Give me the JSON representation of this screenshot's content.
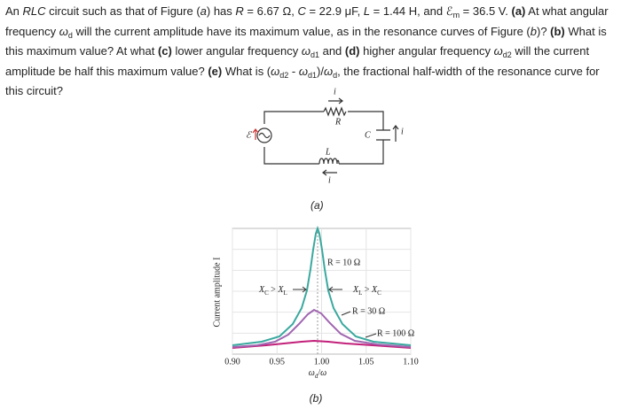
{
  "problem": {
    "runs": [
      {
        "text": "An "
      },
      {
        "text": "RLC",
        "style": "i"
      },
      {
        "text": " circuit such as that of Figure ("
      },
      {
        "text": "a",
        "style": "i"
      },
      {
        "text": ") has "
      },
      {
        "text": "R",
        "style": "i"
      },
      {
        "text": " = 6.67 Ω, "
      },
      {
        "text": "C",
        "style": "i"
      },
      {
        "text": " = 22.9 μF, "
      },
      {
        "text": "L",
        "style": "i"
      },
      {
        "text": " = 1.44 H, and ℰ"
      },
      {
        "text": "m",
        "style": "sub"
      },
      {
        "text": " = 36.5 V. "
      },
      {
        "text": "(a)",
        "style": "b"
      },
      {
        "text": " At what angular frequency "
      },
      {
        "text": "ω",
        "style": "i"
      },
      {
        "text": "d",
        "style": "sub"
      },
      {
        "text": " will the current amplitude have its maximum value, as in the resonance curves of Figure ("
      },
      {
        "text": "b",
        "style": "i"
      },
      {
        "text": ")? "
      },
      {
        "text": "(b)",
        "style": "b"
      },
      {
        "text": " What is this maximum value? At what "
      },
      {
        "text": "(c)",
        "style": "b"
      },
      {
        "text": " lower angular frequency "
      },
      {
        "text": "ω",
        "style": "i"
      },
      {
        "text": "d1",
        "style": "sub"
      },
      {
        "text": " and "
      },
      {
        "text": "(d)",
        "style": "b"
      },
      {
        "text": " higher angular frequency "
      },
      {
        "text": "ω",
        "style": "i"
      },
      {
        "text": "d2",
        "style": "sub"
      },
      {
        "text": " will the current amplitude be half this maximum value? "
      },
      {
        "text": "(e)",
        "style": "b"
      },
      {
        "text": " What is ("
      },
      {
        "text": "ω",
        "style": "i"
      },
      {
        "text": "d2",
        "style": "sub"
      },
      {
        "text": " - "
      },
      {
        "text": "ω",
        "style": "i"
      },
      {
        "text": "d1",
        "style": "sub"
      },
      {
        "text": ")/"
      },
      {
        "text": "ω",
        "style": "i"
      },
      {
        "text": "d",
        "style": "sub"
      },
      {
        "text": ", the fractional half-width of the resonance curve for this circuit?"
      }
    ]
  },
  "figure_a": {
    "labels": {
      "current_top": "i",
      "resistor": "R",
      "source": "ℰ",
      "capacitor": "C",
      "current_right": "i",
      "inductor": "L",
      "current_bottom": "i"
    },
    "caption": "(a)"
  },
  "figure_b": {
    "y_label": "Current amplitude I",
    "x_label": [
      {
        "text": "ω",
        "style": "i"
      },
      {
        "text": "d",
        "style": "sub"
      },
      {
        "text": "/"
      },
      {
        "text": "ω",
        "style": "i"
      }
    ],
    "xlim": [
      0.9,
      1.1
    ],
    "xticks": [
      {
        "value": 0.9,
        "label": "0.90"
      },
      {
        "value": 0.95,
        "label": "0.95"
      },
      {
        "value": 1.0,
        "label": "1.00"
      },
      {
        "value": 1.05,
        "label": "1.05"
      },
      {
        "value": 1.1,
        "label": "1.10"
      }
    ],
    "curve_labels": [
      "R = 10 Ω",
      "R = 30 Ω",
      "R = 100 Ω"
    ],
    "region_left": [
      {
        "text": "X",
        "style": "i"
      },
      {
        "text": "C",
        "style": "sub"
      },
      {
        "text": " > "
      },
      {
        "text": "X",
        "style": "i"
      },
      {
        "text": "L",
        "style": "sub"
      }
    ],
    "region_right": [
      {
        "text": "X",
        "style": "i"
      },
      {
        "text": "L",
        "style": "sub"
      },
      {
        "text": " > "
      },
      {
        "text": "X",
        "style": "i"
      },
      {
        "text": "C",
        "style": "sub"
      }
    ],
    "caption": "(b)"
  }
}
